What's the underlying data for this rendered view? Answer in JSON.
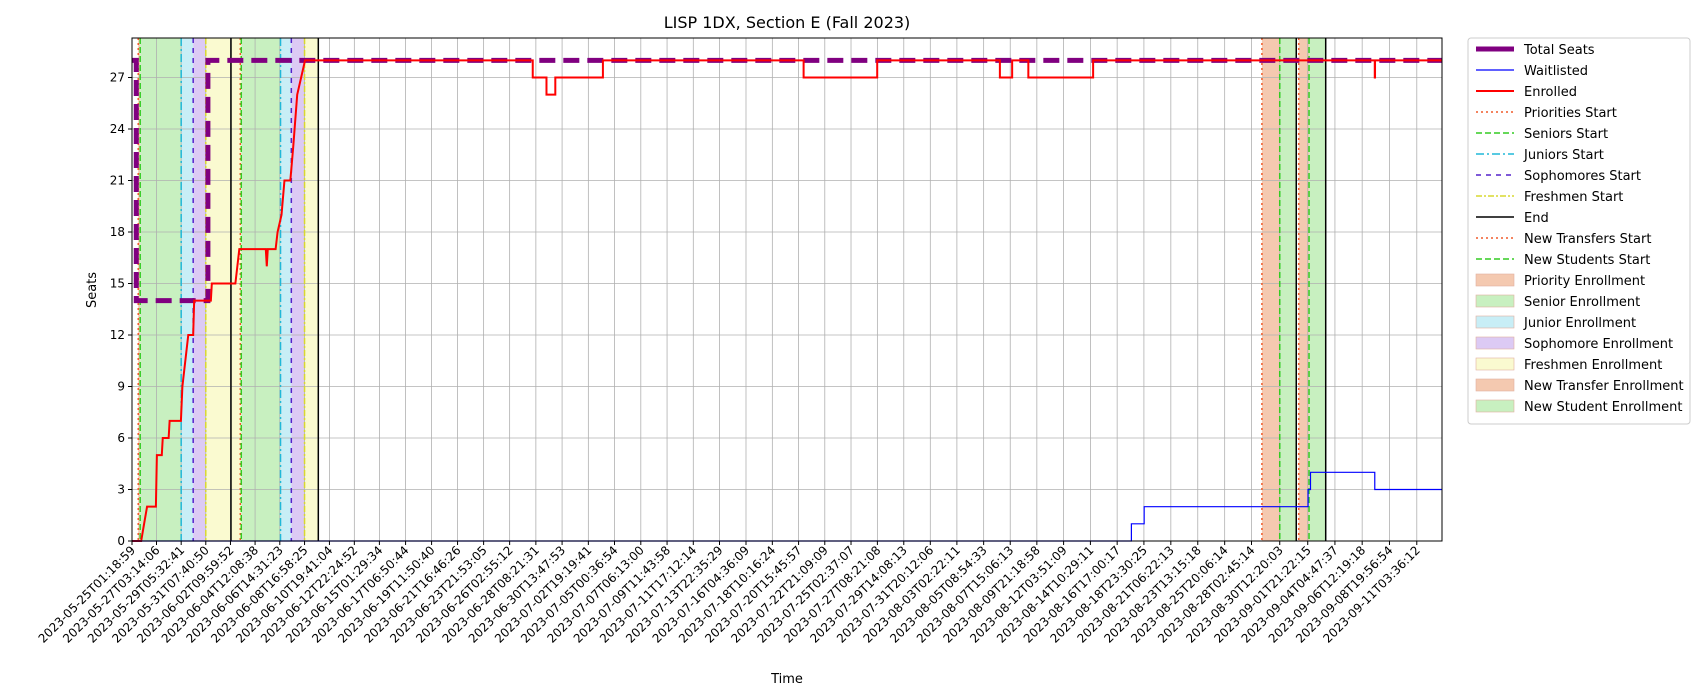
{
  "chart_data": {
    "type": "line",
    "title": "LISP 1DX, Section E (Fall 2023)",
    "xlabel": "Time",
    "ylabel": "Seats",
    "x_type": "date",
    "xlim": [
      "2023-05-25T01:18:59",
      "2023-09-13T07:00:00"
    ],
    "ylim": [
      0,
      29.3
    ],
    "yticks": [
      0,
      3,
      6,
      9,
      12,
      15,
      18,
      21,
      24,
      27
    ],
    "grid": true,
    "legend_position": "outside-right",
    "xtick_labels": [
      "2023-05-25T01:18:59",
      "2023-05-27T03:14:06",
      "2023-05-29T05:32:41",
      "2023-05-31T07:40:50",
      "2023-06-02T09:59:52",
      "2023-06-04T12:08:38",
      "2023-06-06T14:31:23",
      "2023-06-08T16:58:25",
      "2023-06-10T19:41:04",
      "2023-06-12T22:24:52",
      "2023-06-15T01:29:34",
      "2023-06-17T06:50:44",
      "2023-06-19T11:50:40",
      "2023-06-21T16:46:26",
      "2023-06-23T21:53:05",
      "2023-06-26T02:55:12",
      "2023-06-28T08:21:31",
      "2023-06-30T13:47:53",
      "2023-07-02T19:19:41",
      "2023-07-05T00:36:54",
      "2023-07-07T06:13:00",
      "2023-07-09T11:43:58",
      "2023-07-11T17:12:14",
      "2023-07-13T22:35:29",
      "2023-07-16T04:36:09",
      "2023-07-18T10:16:24",
      "2023-07-20T15:45:57",
      "2023-07-22T21:09:09",
      "2023-07-25T02:37:07",
      "2023-07-27T08:21:08",
      "2023-07-29T14:08:13",
      "2023-07-31T20:12:06",
      "2023-08-03T02:22:11",
      "2023-08-05T08:54:33",
      "2023-08-07T15:06:13",
      "2023-08-09T21:18:58",
      "2023-08-12T03:51:09",
      "2023-08-14T10:29:11",
      "2023-08-16T17:00:17",
      "2023-08-18T23:30:25",
      "2023-08-21T06:22:13",
      "2023-08-23T13:15:18",
      "2023-08-25T20:06:14",
      "2023-08-28T02:45:14",
      "2023-08-30T12:20:03",
      "2023-09-01T21:22:15",
      "2023-09-04T04:47:37",
      "2023-09-06T12:19:18",
      "2023-09-08T19:56:54",
      "2023-09-11T03:36:12"
    ],
    "phases": [
      {
        "name": "Priority Enrollment",
        "start": "2023-05-25T14:00:00",
        "end": "2023-05-25T18:00:00",
        "color": "#f4c9b0"
      },
      {
        "name": "Senior Enrollment",
        "start": "2023-05-25T18:00:00",
        "end": "2023-05-29T05:32:41",
        "color": "#c8f0c0"
      },
      {
        "name": "Junior Enrollment",
        "start": "2023-05-29T05:32:41",
        "end": "2023-05-30T06:00:00",
        "color": "#c8eef6"
      },
      {
        "name": "Sophomore Enrollment",
        "start": "2023-05-30T06:00:00",
        "end": "2023-05-31T07:40:50",
        "color": "#dccaf4"
      },
      {
        "name": "Freshmen Enrollment",
        "start": "2023-05-31T07:40:50",
        "end": "2023-06-02T11:00:00",
        "color": "#fafad0"
      },
      {
        "name": "Priority Enrollment",
        "start": "2023-06-02T11:00:00",
        "end": "2023-06-03T08:00:00",
        "color": "#fafad0"
      },
      {
        "name": "Senior Enrollment",
        "start": "2023-06-03T08:00:00",
        "end": "2023-06-06T16:00:00",
        "color": "#c8f0c0"
      },
      {
        "name": "Junior Enrollment",
        "start": "2023-06-06T16:00:00",
        "end": "2023-06-07T14:00:00",
        "color": "#c8eef6"
      },
      {
        "name": "Sophomore Enrollment",
        "start": "2023-06-07T14:00:00",
        "end": "2023-06-08T16:58:25",
        "color": "#dccaf4"
      },
      {
        "name": "Freshmen Enrollment",
        "start": "2023-06-08T16:58:25",
        "end": "2023-06-09T21:00:00",
        "color": "#fafad0"
      },
      {
        "name": "New Transfer Enrollment",
        "start": "2023-08-29T00:00:00",
        "end": "2023-08-30T12:20:03",
        "color": "#f4c9b0"
      },
      {
        "name": "New Student Enrollment",
        "start": "2023-08-30T12:20:03",
        "end": "2023-08-31T22:00:00",
        "color": "#c8f0c0"
      },
      {
        "name": "New Transfer Enrollment",
        "start": "2023-09-01T03:00:00",
        "end": "2023-09-02T00:00:00",
        "color": "#f4c9b0"
      },
      {
        "name": "New Student Enrollment",
        "start": "2023-09-02T00:00:00",
        "end": "2023-09-03T10:00:00",
        "color": "#c8f0c0"
      }
    ],
    "markers": [
      {
        "kind": "Priorities Start",
        "t": "2023-05-25T14:00:00",
        "color": "#f05a2a",
        "dash": "2,3"
      },
      {
        "kind": "Seniors Start",
        "t": "2023-05-25T18:00:00",
        "color": "#33cc22",
        "dash": "6,3"
      },
      {
        "kind": "Juniors Start",
        "t": "2023-05-29T05:32:41",
        "color": "#20b8d8",
        "dash": "8,3,2,3"
      },
      {
        "kind": "Sophomores Start",
        "t": "2023-05-30T06:00:00",
        "color": "#5522cc",
        "dash": "5,5"
      },
      {
        "kind": "Freshmen Start",
        "t": "2023-05-31T07:40:50",
        "color": "#d8d830",
        "dash": "6,2,2,2"
      },
      {
        "kind": "End",
        "t": "2023-06-02T11:00:00",
        "color": "#000000",
        "dash": ""
      },
      {
        "kind": "Priorities Start",
        "t": "2023-06-03T06:00:00",
        "color": "#f05a2a",
        "dash": "2,3"
      },
      {
        "kind": "Seniors Start",
        "t": "2023-06-03T08:00:00",
        "color": "#33cc22",
        "dash": "6,3"
      },
      {
        "kind": "Juniors Start",
        "t": "2023-06-06T16:00:00",
        "color": "#20b8d8",
        "dash": "8,3,2,3"
      },
      {
        "kind": "Sophomores Start",
        "t": "2023-06-07T14:00:00",
        "color": "#5522cc",
        "dash": "5,5"
      },
      {
        "kind": "Freshmen Start",
        "t": "2023-06-08T16:58:25",
        "color": "#d8d830",
        "dash": "6,2,2,2"
      },
      {
        "kind": "End",
        "t": "2023-06-09T21:00:00",
        "color": "#000000",
        "dash": ""
      },
      {
        "kind": "New Transfers Start",
        "t": "2023-08-29T00:00:00",
        "color": "#f05a2a",
        "dash": "2,3"
      },
      {
        "kind": "New Students Start",
        "t": "2023-08-30T12:20:03",
        "color": "#33cc22",
        "dash": "6,3"
      },
      {
        "kind": "End",
        "t": "2023-08-31T22:00:00",
        "color": "#000000",
        "dash": ""
      },
      {
        "kind": "New Transfers Start",
        "t": "2023-09-01T03:00:00",
        "color": "#f05a2a",
        "dash": "2,3"
      },
      {
        "kind": "New Students Start",
        "t": "2023-09-02T00:00:00",
        "color": "#33cc22",
        "dash": "6,3"
      },
      {
        "kind": "End",
        "t": "2023-09-03T10:00:00",
        "color": "#000000",
        "dash": ""
      }
    ],
    "series": [
      {
        "name": "Total Seats",
        "color": "#800080",
        "width": 5,
        "dash": "16,8",
        "points": [
          [
            "2023-05-25T01:18:59",
            28
          ],
          [
            "2023-05-25T10:00:00",
            28
          ],
          [
            "2023-05-25T10:00:00",
            14
          ],
          [
            "2023-05-31T12:00:00",
            14
          ],
          [
            "2023-05-31T12:00:00",
            28
          ],
          [
            "2023-09-13T07:00:00",
            28
          ]
        ]
      },
      {
        "name": "Waitlisted",
        "color": "#0000ff",
        "width": 1.2,
        "dash": "",
        "points": [
          [
            "2023-05-25T01:18:59",
            0
          ],
          [
            "2023-08-17T22:00:00",
            0
          ],
          [
            "2023-08-17T22:00:00",
            1
          ],
          [
            "2023-08-19T00:00:00",
            1
          ],
          [
            "2023-08-19T00:00:00",
            2
          ],
          [
            "2023-09-01T22:00:00",
            2
          ],
          [
            "2023-09-01T22:00:00",
            3
          ],
          [
            "2023-09-02T03:00:00",
            3
          ],
          [
            "2023-09-02T03:00:00",
            4
          ],
          [
            "2023-09-07T14:00:00",
            4
          ],
          [
            "2023-09-07T14:00:00",
            3
          ],
          [
            "2023-09-13T07:00:00",
            3
          ]
        ]
      },
      {
        "name": "Enrolled",
        "color": "#ff0000",
        "width": 2,
        "dash": "",
        "points": [
          [
            "2023-05-25T01:18:59",
            0
          ],
          [
            "2023-05-25T20:00:00",
            0
          ],
          [
            "2023-05-26T02:00:00",
            1
          ],
          [
            "2023-05-26T08:00:00",
            2
          ],
          [
            "2023-05-27T02:00:00",
            2
          ],
          [
            "2023-05-27T04:00:00",
            5
          ],
          [
            "2023-05-27T14:00:00",
            5
          ],
          [
            "2023-05-27T16:00:00",
            6
          ],
          [
            "2023-05-28T04:00:00",
            6
          ],
          [
            "2023-05-28T06:00:00",
            7
          ],
          [
            "2023-05-29T05:00:00",
            7
          ],
          [
            "2023-05-29T08:00:00",
            9
          ],
          [
            "2023-05-29T16:00:00",
            11
          ],
          [
            "2023-05-29T20:00:00",
            12
          ],
          [
            "2023-05-30T06:00:00",
            12
          ],
          [
            "2023-05-30T08:00:00",
            14
          ],
          [
            "2023-05-31T18:00:00",
            14
          ],
          [
            "2023-05-31T20:00:00",
            15
          ],
          [
            "2023-06-02T20:00:00",
            15
          ],
          [
            "2023-06-03T04:00:00",
            17
          ],
          [
            "2023-06-05T10:00:00",
            17
          ],
          [
            "2023-06-05T12:00:00",
            16
          ],
          [
            "2023-06-05T14:00:00",
            17
          ],
          [
            "2023-06-06T06:00:00",
            17
          ],
          [
            "2023-06-06T10:00:00",
            18
          ],
          [
            "2023-06-06T18:00:00",
            19
          ],
          [
            "2023-06-07T00:00:00",
            21
          ],
          [
            "2023-06-07T12:00:00",
            21
          ],
          [
            "2023-06-07T18:00:00",
            23
          ],
          [
            "2023-06-08T02:00:00",
            26
          ],
          [
            "2023-06-08T10:00:00",
            27
          ],
          [
            "2023-06-08T18:00:00",
            28
          ],
          [
            "2023-06-28T02:00:00",
            28
          ],
          [
            "2023-06-28T02:00:00",
            27
          ],
          [
            "2023-06-29T06:00:00",
            27
          ],
          [
            "2023-06-29T06:00:00",
            26
          ],
          [
            "2023-06-30T00:00:00",
            26
          ],
          [
            "2023-06-30T00:00:00",
            27
          ],
          [
            "2023-07-04T01:00:00",
            27
          ],
          [
            "2023-07-04T01:00:00",
            28
          ],
          [
            "2023-07-21T02:00:00",
            28
          ],
          [
            "2023-07-21T02:00:00",
            27
          ],
          [
            "2023-07-27T08:00:00",
            27
          ],
          [
            "2023-07-27T08:00:00",
            28
          ],
          [
            "2023-08-06T18:00:00",
            28
          ],
          [
            "2023-08-06T18:00:00",
            27
          ],
          [
            "2023-08-07T19:00:00",
            27
          ],
          [
            "2023-08-07T19:00:00",
            28
          ],
          [
            "2023-08-09T04:00:00",
            28
          ],
          [
            "2023-08-09T04:00:00",
            27
          ],
          [
            "2023-08-14T16:00:00",
            27
          ],
          [
            "2023-08-14T16:00:00",
            28
          ],
          [
            "2023-09-07T14:00:00",
            28
          ],
          [
            "2023-09-07T14:00:00",
            27
          ],
          [
            "2023-09-07T14:30:00",
            27
          ],
          [
            "2023-09-07T14:30:00",
            28
          ],
          [
            "2023-09-13T07:00:00",
            28
          ]
        ]
      }
    ],
    "legend": [
      {
        "label": "Total Seats",
        "kind": "line",
        "color": "#800080",
        "dash": "",
        "width": 5
      },
      {
        "label": "Waitlisted",
        "kind": "line",
        "color": "#0000ff",
        "dash": "",
        "width": 1.2
      },
      {
        "label": "Enrolled",
        "kind": "line",
        "color": "#ff0000",
        "dash": "",
        "width": 2
      },
      {
        "label": "Priorities Start",
        "kind": "line",
        "color": "#f05a2a",
        "dash": "2,3",
        "width": 1.5
      },
      {
        "label": "Seniors Start",
        "kind": "line",
        "color": "#33cc22",
        "dash": "6,3",
        "width": 1.5
      },
      {
        "label": "Juniors Start",
        "kind": "line",
        "color": "#20b8d8",
        "dash": "8,3,2,3",
        "width": 1.5
      },
      {
        "label": "Sophomores Start",
        "kind": "line",
        "color": "#5522cc",
        "dash": "5,5",
        "width": 1.5
      },
      {
        "label": "Freshmen Start",
        "kind": "line",
        "color": "#d8d830",
        "dash": "6,2,2,2",
        "width": 1.5
      },
      {
        "label": "End",
        "kind": "line",
        "color": "#000000",
        "dash": "",
        "width": 1.5
      },
      {
        "label": "New Transfers Start",
        "kind": "line",
        "color": "#f05a2a",
        "dash": "2,3",
        "width": 1.5
      },
      {
        "label": "New Students Start",
        "kind": "line",
        "color": "#33cc22",
        "dash": "6,3",
        "width": 1.5
      },
      {
        "label": "Priority Enrollment",
        "kind": "patch",
        "color": "#f4c9b0"
      },
      {
        "label": "Senior Enrollment",
        "kind": "patch",
        "color": "#c8f0c0"
      },
      {
        "label": "Junior Enrollment",
        "kind": "patch",
        "color": "#c8eef6"
      },
      {
        "label": "Sophomore Enrollment",
        "kind": "patch",
        "color": "#dccaf4"
      },
      {
        "label": "Freshmen Enrollment",
        "kind": "patch",
        "color": "#fafad0"
      },
      {
        "label": "New Transfer Enrollment",
        "kind": "patch",
        "color": "#f4c9b0"
      },
      {
        "label": "New Student Enrollment",
        "kind": "patch",
        "color": "#c8f0c0"
      }
    ]
  }
}
